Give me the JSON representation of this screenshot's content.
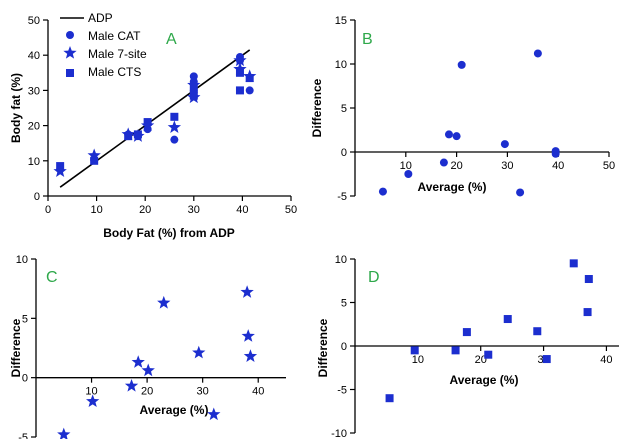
{
  "colors": {
    "marker": "#1c2ecf",
    "axis": "#000000",
    "letter": "#2ea84a",
    "line": "#000000"
  },
  "chart_data": [
    {
      "id": "A",
      "type": "scatter",
      "letter": "A",
      "xlabel": "Body Fat (%) from ADP",
      "ylabel": "Body fat (%)",
      "xlim": [
        0,
        50
      ],
      "ylim": [
        0,
        50
      ],
      "xticks": [
        0,
        10,
        20,
        30,
        40,
        50
      ],
      "yticks": [
        0,
        10,
        20,
        30,
        40,
        50
      ],
      "legend": {
        "placement": "top-left"
      },
      "line": {
        "name": "ADP",
        "x": [
          2.5,
          41.5
        ],
        "y": [
          2.5,
          41.5
        ]
      },
      "series": [
        {
          "name": "Male CAT",
          "marker": "circle",
          "points": [
            [
              2.5,
              7.5
            ],
            [
              9.5,
              10.5
            ],
            [
              16.5,
              17.5
            ],
            [
              18.5,
              17
            ],
            [
              20.5,
              19
            ],
            [
              26,
              16
            ],
            [
              30,
              32.5
            ],
            [
              30,
              34
            ],
            [
              39.5,
              38.5
            ],
            [
              39.5,
              39.5
            ],
            [
              41.5,
              30
            ]
          ]
        },
        {
          "name": "Male 7-site",
          "marker": "star",
          "points": [
            [
              2.5,
              7
            ],
            [
              9.5,
              11.5
            ],
            [
              16.5,
              17.5
            ],
            [
              18.5,
              17
            ],
            [
              20.5,
              20
            ],
            [
              26,
              19.5
            ],
            [
              30,
              28
            ],
            [
              30,
              31.5
            ],
            [
              39.5,
              36
            ],
            [
              39.5,
              38.5
            ],
            [
              41.5,
              34
            ]
          ]
        },
        {
          "name": "Male CTS",
          "marker": "square",
          "points": [
            [
              2.5,
              8.5
            ],
            [
              9.5,
              10
            ],
            [
              16.5,
              17
            ],
            [
              18.5,
              17.5
            ],
            [
              20.5,
              21
            ],
            [
              26,
              22.5
            ],
            [
              30,
              28.5
            ],
            [
              30,
              30.5
            ],
            [
              39.5,
              35
            ],
            [
              39.5,
              30
            ],
            [
              41.5,
              33.5
            ]
          ]
        }
      ]
    },
    {
      "id": "B",
      "type": "scatter",
      "letter": "B",
      "xlabel": "Average (%)",
      "ylabel": "Difference",
      "xlim": [
        0,
        50
      ],
      "ylim": [
        -5,
        15
      ],
      "xticks": [
        10,
        20,
        30,
        40,
        50
      ],
      "yticks": [
        -5,
        0,
        5,
        10,
        15
      ],
      "series": [
        {
          "marker": "circle",
          "points": [
            [
              5.5,
              -4.5
            ],
            [
              10.5,
              -2.5
            ],
            [
              17.5,
              -1.2
            ],
            [
              18.5,
              2
            ],
            [
              20,
              1.8
            ],
            [
              21,
              9.9
            ],
            [
              29.5,
              0.9
            ],
            [
              32.5,
              -4.6
            ],
            [
              36,
              11.2
            ],
            [
              39.5,
              -0.2
            ],
            [
              39.5,
              0.1
            ]
          ]
        }
      ]
    },
    {
      "id": "C",
      "type": "scatter",
      "letter": "C",
      "xlabel": "Average (%)",
      "ylabel": "Difference",
      "xlim": [
        0,
        45
      ],
      "ylim": [
        -5,
        10
      ],
      "xticks": [
        10,
        20,
        30,
        40
      ],
      "yticks": [
        -5,
        0,
        5,
        10
      ],
      "series": [
        {
          "marker": "star",
          "points": [
            [
              5,
              -4.8
            ],
            [
              10.2,
              -2
            ],
            [
              17.2,
              -0.7
            ],
            [
              18.4,
              1.3
            ],
            [
              20.2,
              0.6
            ],
            [
              23,
              6.3
            ],
            [
              29.3,
              2.1
            ],
            [
              32,
              -3.1
            ],
            [
              38,
              7.2
            ],
            [
              38.2,
              3.5
            ],
            [
              38.6,
              1.8
            ]
          ]
        }
      ]
    },
    {
      "id": "D",
      "type": "scatter",
      "letter": "D",
      "xlabel": "Average (%)",
      "ylabel": "Difference",
      "xlim": [
        0,
        42
      ],
      "ylim": [
        -10,
        10
      ],
      "xticks": [
        10,
        20,
        30,
        40
      ],
      "yticks": [
        -10,
        -5,
        0,
        5,
        10
      ],
      "series": [
        {
          "marker": "square",
          "points": [
            [
              5.5,
              -6
            ],
            [
              9.5,
              -0.5
            ],
            [
              16,
              -0.5
            ],
            [
              17.8,
              1.6
            ],
            [
              21.2,
              -1
            ],
            [
              24.3,
              3.1
            ],
            [
              29,
              1.7
            ],
            [
              30.5,
              -1.5
            ],
            [
              34.8,
              9.5
            ],
            [
              37.2,
              7.7
            ],
            [
              37,
              3.9
            ]
          ]
        }
      ]
    }
  ]
}
